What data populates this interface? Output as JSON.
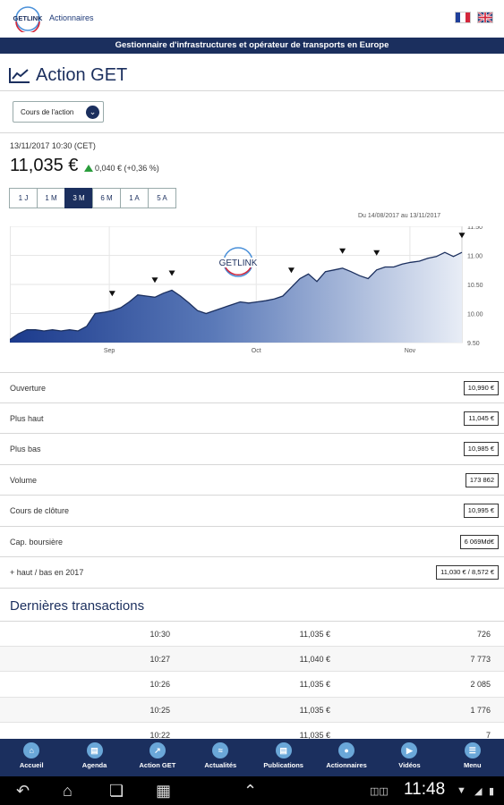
{
  "header": {
    "logo_text": "GETLINK",
    "logo_sub": "Actionnaires",
    "tagline": "Gestionnaire d'infrastructures et opérateur de transports en Europe",
    "flag_fr_icon": "france-flag-icon",
    "flag_uk_icon": "uk-flag-icon"
  },
  "page": {
    "title": "Action GET",
    "select_value": "Cours de l'action"
  },
  "quote": {
    "date": "13/11/2017 10:30 (CET)",
    "price": "11,035 €",
    "change": "0,040 € (+0,36 %)"
  },
  "periods": [
    {
      "label": "1 J",
      "active": false
    },
    {
      "label": "1 M",
      "active": false
    },
    {
      "label": "3 M",
      "active": true
    },
    {
      "label": "6 M",
      "active": false
    },
    {
      "label": "1 A",
      "active": false
    },
    {
      "label": "5 A",
      "active": false
    }
  ],
  "chart_data": {
    "type": "area",
    "range_label": "Du 14/08/2017 au 13/11/2017",
    "watermark": "GETLINK",
    "x_ticks": [
      "Sep",
      "Oct",
      "Nov"
    ],
    "y_ticks": [
      "11.50",
      "11.00",
      "10.50",
      "10.00",
      "9.50"
    ],
    "ylim": [
      9.5,
      11.5
    ],
    "values": [
      9.55,
      9.65,
      9.72,
      9.72,
      9.7,
      9.72,
      9.7,
      9.72,
      9.7,
      9.78,
      10.0,
      10.02,
      10.05,
      10.1,
      10.2,
      10.32,
      10.3,
      10.28,
      10.35,
      10.4,
      10.3,
      10.18,
      10.05,
      10.0,
      10.05,
      10.1,
      10.15,
      10.2,
      10.18,
      10.2,
      10.22,
      10.25,
      10.3,
      10.45,
      10.6,
      10.68,
      10.55,
      10.72,
      10.75,
      10.78,
      10.72,
      10.65,
      10.6,
      10.75,
      10.8,
      10.8,
      10.85,
      10.88,
      10.9,
      10.95,
      10.98,
      11.05,
      10.98,
      11.05
    ],
    "grid": true,
    "legend": "none"
  },
  "stats": [
    {
      "label": "Ouverture",
      "value": "10,990 €"
    },
    {
      "label": "Plus haut",
      "value": "11,045 €"
    },
    {
      "label": "Plus bas",
      "value": "10,985 €"
    },
    {
      "label": "Volume",
      "value": "173 862"
    },
    {
      "label": "Cours de clôture",
      "value": "10,995 €"
    },
    {
      "label": "Cap. boursière",
      "value": "6 069Md€"
    },
    {
      "label": "+ haut / bas en 2017",
      "value": "11,030 € / 8,572 €"
    }
  ],
  "transactions": {
    "title": "Dernières transactions",
    "rows": [
      {
        "time": "10:30",
        "price": "11,035 €",
        "volume": "726"
      },
      {
        "time": "10:27",
        "price": "11,040 €",
        "volume": "7 773"
      },
      {
        "time": "10:26",
        "price": "11,035 €",
        "volume": "2 085"
      },
      {
        "time": "10:25",
        "price": "11,035 €",
        "volume": "1 776"
      },
      {
        "time": "10:22",
        "price": "11,035 €",
        "volume": "7"
      }
    ]
  },
  "nav": [
    {
      "label": "Accueil",
      "icon": "home-icon"
    },
    {
      "label": "Agenda",
      "icon": "calendar-icon"
    },
    {
      "label": "Action GET",
      "icon": "chart-icon"
    },
    {
      "label": "Actualités",
      "icon": "rss-icon"
    },
    {
      "label": "Publications",
      "icon": "document-icon"
    },
    {
      "label": "Actionnaires",
      "icon": "people-icon"
    },
    {
      "label": "Vidéos",
      "icon": "video-icon"
    },
    {
      "label": "Menu",
      "icon": "menu-icon"
    }
  ],
  "system": {
    "clock": "11:48"
  },
  "colors": {
    "brand": "#1b2f5e",
    "up": "#2a9d3c"
  }
}
